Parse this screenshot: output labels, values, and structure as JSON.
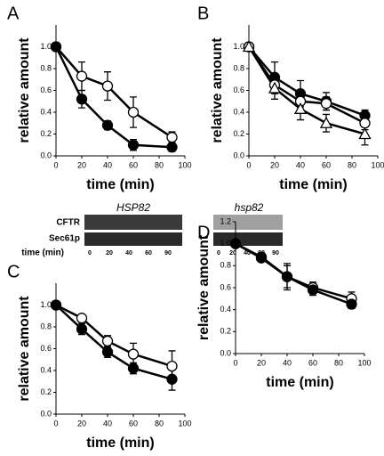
{
  "chart_data": [
    {
      "type": "line",
      "panel": "A",
      "xlabel": "time (min)",
      "ylabel": "relative amount",
      "x": [
        0,
        20,
        40,
        60,
        90
      ],
      "xlim": [
        0,
        100
      ],
      "xticks": [
        0,
        20,
        40,
        60,
        80,
        100
      ],
      "ylim": [
        0,
        1.2
      ],
      "yticks": [
        {
          "value": 0,
          "label": "0.0"
        },
        {
          "value": 0.2,
          "label": "0.2"
        },
        {
          "value": 0.4,
          "label": "0.4"
        },
        {
          "value": 0.6,
          "label": "0.6"
        },
        {
          "value": 0.8,
          "label": "0.8"
        },
        {
          "value": 1,
          "label": "1.0"
        }
      ],
      "series": [
        {
          "color": "#000000",
          "marker": "open-circle",
          "values": [
            1.0,
            0.73,
            0.64,
            0.4,
            0.17
          ],
          "errors": [
            0,
            0.13,
            0.13,
            0.14,
            0.05
          ]
        },
        {
          "color": "#000000",
          "marker": "filled-circle",
          "values": [
            1.0,
            0.52,
            0.28,
            0.1,
            0.08
          ],
          "errors": [
            0,
            0.08,
            0.04,
            0.05,
            0.04
          ]
        }
      ]
    },
    {
      "type": "line",
      "panel": "B",
      "xlabel": "time (min)",
      "ylabel": "relative amount",
      "x": [
        0,
        20,
        40,
        60,
        90
      ],
      "xlim": [
        0,
        100
      ],
      "xticks": [
        0,
        20,
        40,
        60,
        80,
        100
      ],
      "ylim": [
        0,
        1.2
      ],
      "yticks": [
        {
          "value": 0,
          "label": "0.0"
        },
        {
          "value": 0.2,
          "label": "0.2"
        },
        {
          "value": 0.4,
          "label": "0.4"
        },
        {
          "value": 0.6,
          "label": "0.6"
        },
        {
          "value": 0.8,
          "label": "0.8"
        },
        {
          "value": 1,
          "label": "1.0"
        }
      ],
      "series": [
        {
          "color": "#000000",
          "marker": "filled-circle",
          "values": [
            1.0,
            0.72,
            0.57,
            0.5,
            0.37
          ],
          "errors": [
            0,
            0.14,
            0.12,
            0.08,
            0.05
          ]
        },
        {
          "color": "#000000",
          "marker": "open-circle",
          "values": [
            1.0,
            0.65,
            0.5,
            0.48,
            0.3
          ],
          "errors": [
            0,
            0.08,
            0.08,
            0.06,
            0.06
          ]
        },
        {
          "color": "#000000",
          "marker": "open-triangle",
          "values": [
            1.0,
            0.62,
            0.43,
            0.3,
            0.2
          ],
          "errors": [
            0,
            0.1,
            0.1,
            0.08,
            0.1
          ]
        }
      ]
    },
    {
      "type": "line",
      "panel": "C",
      "xlabel": "time (min)",
      "ylabel": "relative amount",
      "x": [
        0,
        20,
        40,
        60,
        90
      ],
      "xlim": [
        0,
        100
      ],
      "xticks": [
        0,
        20,
        40,
        60,
        80,
        100
      ],
      "ylim": [
        0,
        1.2
      ],
      "yticks": [
        {
          "value": 0,
          "label": "0.0"
        },
        {
          "value": 0.2,
          "label": "0.2"
        },
        {
          "value": 0.4,
          "label": "0.4"
        },
        {
          "value": 0.6,
          "label": "0.6"
        },
        {
          "value": 0.8,
          "label": "0.8"
        },
        {
          "value": 1,
          "label": "1.0"
        }
      ],
      "series": [
        {
          "color": "#000000",
          "marker": "open-circle",
          "values": [
            1.0,
            0.88,
            0.67,
            0.55,
            0.44
          ],
          "errors": [
            0,
            0.03,
            0.05,
            0.1,
            0.14
          ]
        },
        {
          "color": "#000000",
          "marker": "filled-circle",
          "values": [
            1.0,
            0.78,
            0.57,
            0.42,
            0.32
          ],
          "errors": [
            0,
            0.05,
            0.05,
            0.05,
            0.1
          ]
        }
      ]
    },
    {
      "type": "line",
      "panel": "D",
      "xlabel": "time (min)",
      "ylabel": "relative amount",
      "x": [
        0,
        20,
        40,
        60,
        90
      ],
      "xlim": [
        0,
        100
      ],
      "xticks": [
        0,
        20,
        40,
        60,
        80,
        100
      ],
      "ylim": [
        0,
        1.2
      ],
      "yticks": [
        {
          "value": 0,
          "label": "0.0"
        },
        {
          "value": 0.2,
          "label": "0.2"
        },
        {
          "value": 0.4,
          "label": "0.4"
        },
        {
          "value": 0.6,
          "label": "0.6"
        },
        {
          "value": 0.8,
          "label": "0.8"
        },
        {
          "value": 1,
          "label": "1.0"
        },
        {
          "value": 1.2,
          "label": "1.2"
        }
      ],
      "series": [
        {
          "color": "#000000",
          "marker": "open-circle",
          "values": [
            1.0,
            0.87,
            0.7,
            0.6,
            0.5
          ],
          "errors": [
            0,
            0.03,
            0.12,
            0.05,
            0.06
          ]
        },
        {
          "color": "#000000",
          "marker": "filled-circle",
          "values": [
            1.0,
            0.88,
            0.7,
            0.58,
            0.45
          ],
          "errors": [
            0,
            0.03,
            0.1,
            0.05,
            0.04
          ]
        }
      ]
    }
  ],
  "blot": {
    "left_gene": "HSP82",
    "right_gene": "hsp82",
    "rows": [
      "CFTR",
      "Sec61p"
    ],
    "time_label": "time (min)",
    "lanes": [
      "0",
      "20",
      "40",
      "60",
      "90"
    ]
  }
}
